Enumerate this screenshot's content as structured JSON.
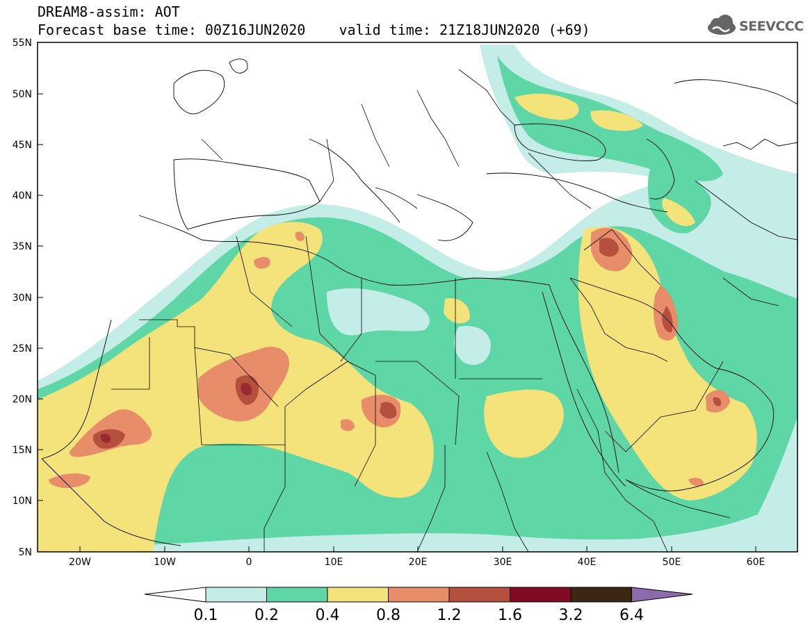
{
  "header": {
    "line1": "DREAM8-assim: AOT",
    "line2": "Forecast base time: 00Z16JUN2020    valid time: 21Z18JUN2020 (+69)"
  },
  "logo": {
    "text": "SEEVCCC",
    "icon": "cloud-icon"
  },
  "map": {
    "y_ticks": [
      "55N",
      "50N",
      "45N",
      "40N",
      "35N",
      "30N",
      "25N",
      "20N",
      "15N",
      "10N",
      "5N"
    ],
    "x_ticks": [
      "20W",
      "10W",
      "0",
      "10E",
      "20E",
      "30E",
      "40E",
      "50E",
      "60E"
    ]
  },
  "colorbar": {
    "labels": [
      "0.1",
      "0.2",
      "0.4",
      "0.8",
      "1.2",
      "1.6",
      "3.2",
      "6.4"
    ],
    "colors": [
      "#ffffff",
      "#c3ede6",
      "#5ed6a6",
      "#f4e27a",
      "#e88d6a",
      "#b5503f",
      "#820b24",
      "#3b2712",
      "#8b6bac"
    ]
  }
}
